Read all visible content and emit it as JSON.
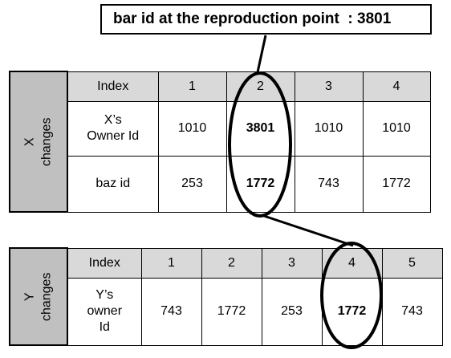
{
  "callout": {
    "label": "bar id at the reproduction point",
    "separator": "  : ",
    "value": "3801"
  },
  "x_table": {
    "side_line1": "X",
    "side_line2": "changes",
    "index_label": "Index",
    "indices": [
      "1",
      "2",
      "3",
      "4"
    ],
    "row1_label_line1": "X’s",
    "row1_label_line2": "Owner Id",
    "row1_values": [
      "1010",
      "3801",
      "1010",
      "1010"
    ],
    "row2_label": "baz id",
    "row2_values": [
      "253",
      "1772",
      "743",
      "1772"
    ]
  },
  "y_table": {
    "side_line1": "Y",
    "side_line2": "changes",
    "index_label": "Index",
    "indices": [
      "1",
      "2",
      "3",
      "4",
      "5"
    ],
    "row1_label_line1": "Y’s",
    "row1_label_line2": "owner",
    "row1_label_line3": "Id",
    "row1_values": [
      "743",
      "1772",
      "253",
      "1772",
      "743"
    ]
  },
  "colors": {
    "side_fill": "#c0c0c0",
    "header_fill": "#d9d9d9",
    "stroke": "#000000"
  }
}
